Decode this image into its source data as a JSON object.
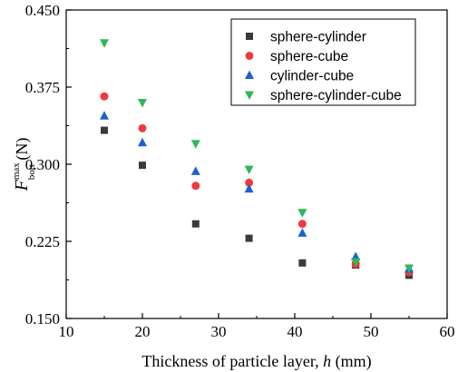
{
  "chart_data": {
    "type": "scatter",
    "xlabel_prefix": "Thickness of particle layer, ",
    "xlabel_var": "h",
    "xlabel_unit": " (mm)",
    "ylabel_main": "F",
    "ylabel_sup": "max",
    "ylabel_sub": "bott",
    "ylabel_unit": " (N)",
    "xlim": [
      10,
      60
    ],
    "ylim": [
      0.15,
      0.45
    ],
    "xticks": [
      "10",
      "20",
      "30",
      "40",
      "50",
      "60"
    ],
    "yticks": [
      "0.150",
      "0.225",
      "0.300",
      "0.375",
      "0.450"
    ],
    "grid": false,
    "legend_position": "top-right",
    "series": [
      {
        "name": "sphere-cylinder",
        "marker": "square",
        "color": "#3a3a3a",
        "x": [
          15,
          20,
          27,
          34,
          41,
          48,
          55
        ],
        "y": [
          0.333,
          0.299,
          0.242,
          0.228,
          0.204,
          0.202,
          0.192
        ]
      },
      {
        "name": "sphere-cube",
        "marker": "circle",
        "color": "#ee3b3b",
        "x": [
          15,
          20,
          27,
          34,
          41,
          48,
          55
        ],
        "y": [
          0.366,
          0.335,
          0.279,
          0.282,
          0.242,
          0.203,
          0.195
        ]
      },
      {
        "name": "cylinder-cube",
        "marker": "triangle-up",
        "color": "#1f5fd6",
        "x": [
          15,
          20,
          27,
          34,
          41,
          48,
          55
        ],
        "y": [
          0.347,
          0.321,
          0.293,
          0.276,
          0.233,
          0.21,
          0.198
        ]
      },
      {
        "name": "sphere-cylinder-cube",
        "marker": "triangle-down",
        "color": "#2db85a",
        "x": [
          15,
          20,
          27,
          34,
          41,
          48,
          55
        ],
        "y": [
          0.418,
          0.36,
          0.32,
          0.295,
          0.253,
          0.205,
          0.199
        ]
      }
    ]
  }
}
